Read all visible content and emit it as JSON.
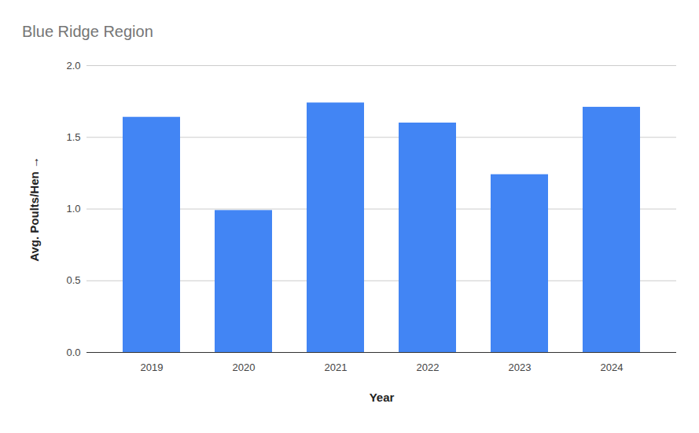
{
  "chart_data": {
    "type": "bar",
    "title": "Blue Ridge Region",
    "x_label": "Year",
    "y_label": "Avg. Poults/Hen",
    "categories": [
      "2019",
      "2020",
      "2021",
      "2022",
      "2023",
      "2024"
    ],
    "values": [
      1.64,
      0.99,
      1.74,
      1.6,
      1.24,
      1.71
    ],
    "color": "#4285f4",
    "ylim": [
      0,
      2
    ],
    "yticks": [
      {
        "value": 0,
        "label": "0.0"
      },
      {
        "value": 0.5,
        "label": "0.5"
      },
      {
        "value": 1,
        "label": "1.0"
      },
      {
        "value": 1.5,
        "label": "1.5"
      },
      {
        "value": 2,
        "label": "2.0"
      }
    ],
    "grid": true
  }
}
